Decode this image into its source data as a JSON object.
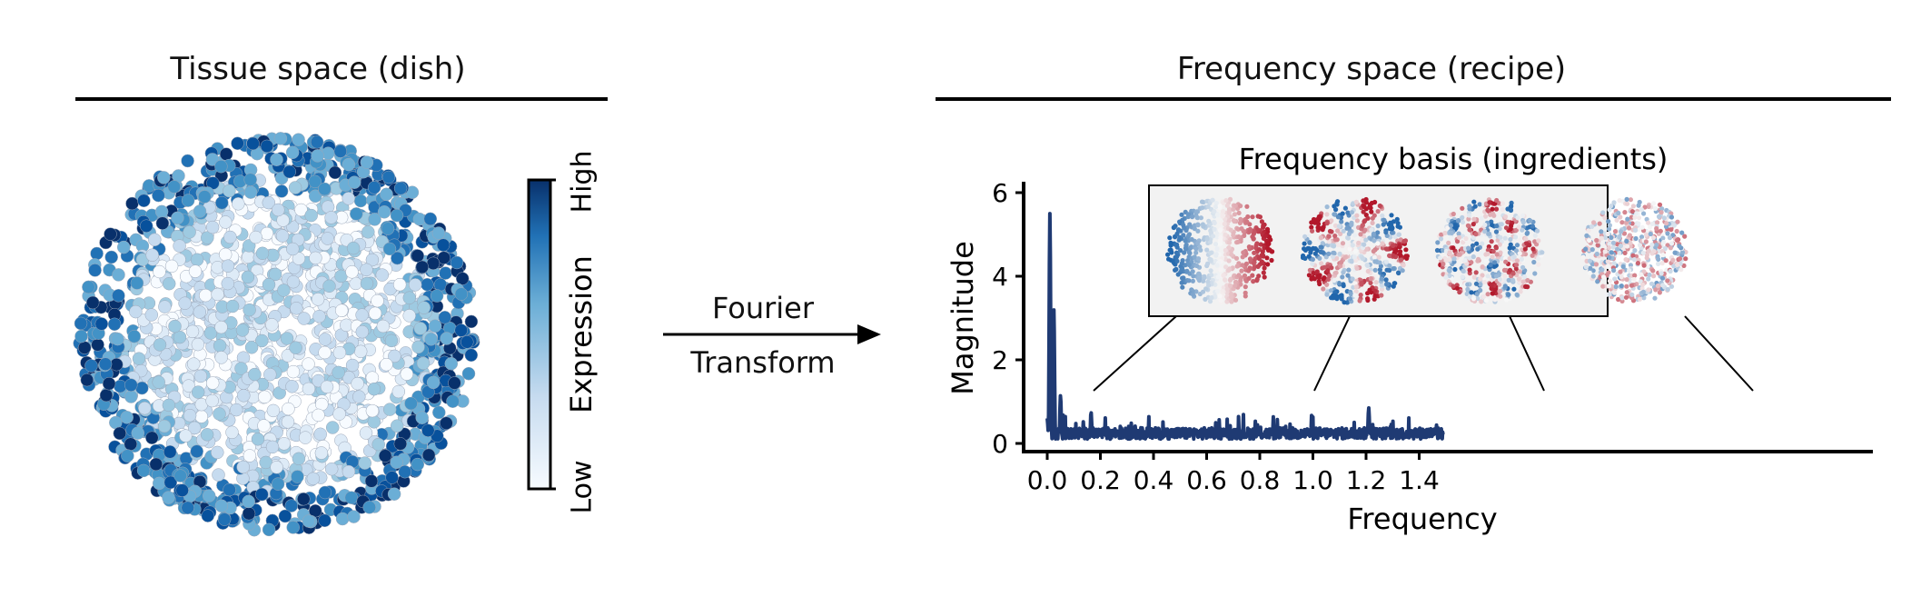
{
  "left_panel": {
    "title": "Tissue space (dish)",
    "colorbar": {
      "label": "Expression",
      "high_label": "High",
      "low_label": "Low",
      "colors": [
        "#f7fbff",
        "#c6dbef",
        "#6baed6",
        "#2171b5",
        "#08306b"
      ]
    }
  },
  "arrow": {
    "line1": "Fourier",
    "line2": "Transform"
  },
  "right_panel": {
    "title": "Frequency space (recipe)",
    "inset_title": "Frequency basis (ingredients)"
  },
  "chart_data": {
    "type": "line",
    "xlabel": "Frequency",
    "ylabel": "Magnitude",
    "xlim": [
      0,
      1.55
    ],
    "ylim": [
      0,
      6.3
    ],
    "xticks": [
      "0.0",
      "0.2",
      "0.4",
      "0.6",
      "0.8",
      "1.0",
      "1.2",
      "1.4"
    ],
    "yticks": [
      "0",
      "2",
      "4",
      "6"
    ],
    "line_color": "#1f3a73",
    "peaks": [
      {
        "x": 0.0,
        "y": 0.6
      },
      {
        "x": 0.01,
        "y": 5.5
      },
      {
        "x": 0.025,
        "y": 3.2
      },
      {
        "x": 0.05,
        "y": 1.15
      },
      {
        "x": 0.165,
        "y": 0.75
      },
      {
        "x": 1.21,
        "y": 0.85
      }
    ],
    "baseline_level": 0.3,
    "x_max": 1.49
  }
}
